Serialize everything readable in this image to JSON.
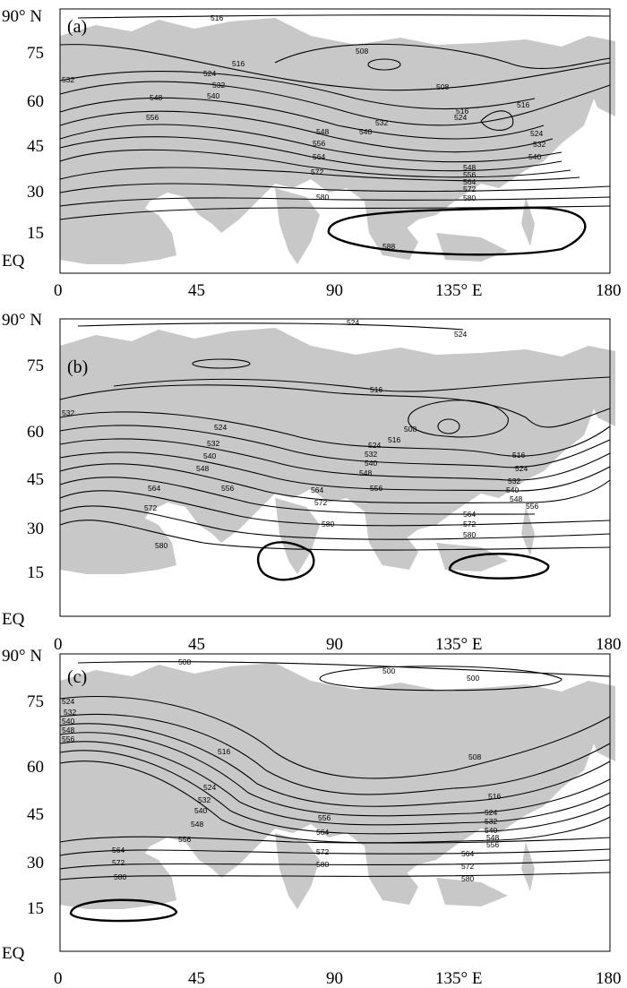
{
  "panels": [
    {
      "id": "a",
      "label": "(a)",
      "contour_labels": [
        "516",
        "508",
        "516",
        "508",
        "532",
        "524",
        "532",
        "540",
        "548",
        "556",
        "516",
        "524",
        "532",
        "540",
        "548",
        "556",
        "564",
        "572",
        "580",
        "524",
        "532",
        "540",
        "548",
        "556",
        "564",
        "572",
        "580",
        "588",
        "516"
      ]
    },
    {
      "id": "b",
      "label": "(b)",
      "contour_labels": [
        "524",
        "524",
        "516",
        "532",
        "524",
        "532",
        "540",
        "548",
        "556",
        "564",
        "572",
        "580",
        "508",
        "516",
        "524",
        "532",
        "540",
        "548",
        "556",
        "564",
        "572",
        "580",
        "516",
        "524",
        "532",
        "540",
        "548",
        "556",
        "564",
        "572",
        "580"
      ]
    },
    {
      "id": "c",
      "label": "(c)",
      "contour_labels": [
        "508",
        "500",
        "500",
        "524",
        "532",
        "540",
        "548",
        "556",
        "516",
        "508",
        "524",
        "532",
        "540",
        "548",
        "556",
        "556",
        "564",
        "572",
        "580",
        "516",
        "524",
        "532",
        "540",
        "548",
        "556",
        "564",
        "572",
        "580",
        "564",
        "572",
        "580"
      ]
    }
  ],
  "y_axis_labels": [
    "90° N",
    "75",
    "60",
    "45",
    "30",
    "15",
    "EQ"
  ],
  "x_axis_labels": [
    "0",
    "45",
    "90",
    "135° E",
    "180"
  ]
}
